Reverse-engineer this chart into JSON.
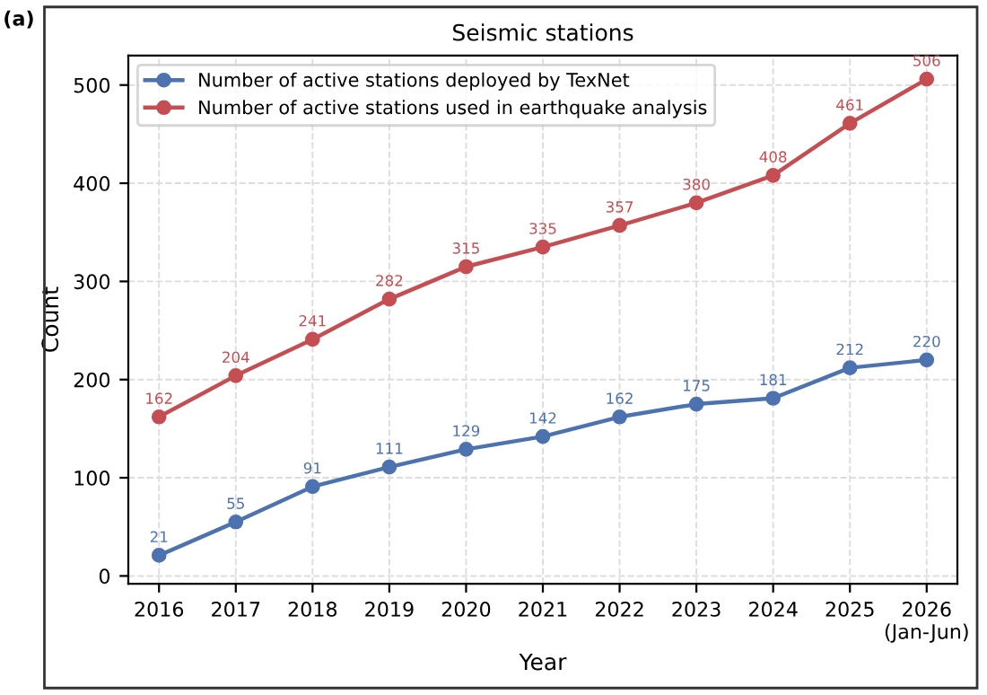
{
  "chart_data": {
    "type": "line",
    "title": "Seismic stations",
    "xlabel": "Year",
    "ylabel": "Count",
    "categories": [
      "2016",
      "2017",
      "2018",
      "2019",
      "2020",
      "2021",
      "2022",
      "2023",
      "2024",
      "2025",
      "2026\n(Jan-Jun)"
    ],
    "series": [
      {
        "name": "Number of active stations deployed by TexNet",
        "color": "#4c72b0",
        "values": [
          21,
          55,
          91,
          111,
          129,
          142,
          162,
          175,
          181,
          212,
          220
        ]
      },
      {
        "name": "Number of active stations used in earthquake analysis",
        "color": "#c44e52",
        "values": [
          162,
          204,
          241,
          282,
          315,
          335,
          357,
          380,
          408,
          461,
          506
        ]
      }
    ],
    "ylim": [
      -8,
      530
    ],
    "yticks": [
      0,
      100,
      200,
      300,
      400,
      500
    ],
    "grid": true,
    "legend": "top left",
    "marker": "circle",
    "line_style": "solid",
    "data_labels": true,
    "annotations": [
      "(a)"
    ]
  }
}
